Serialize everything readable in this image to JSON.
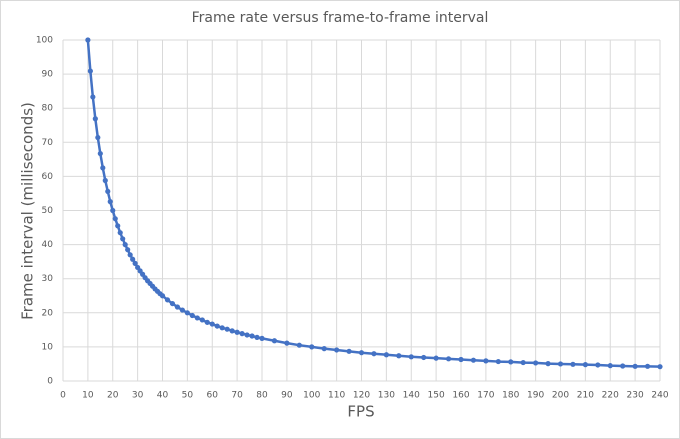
{
  "chart_data": {
    "type": "line",
    "title": "Frame rate versus frame-to-frame interval",
    "x_label": "FPS",
    "y_label": "Frame interval (milliseconds)",
    "x": [
      10,
      11,
      12,
      13,
      14,
      15,
      16,
      17,
      18,
      19,
      20,
      21,
      22,
      23,
      24,
      25,
      26,
      27,
      28,
      29,
      30,
      31,
      32,
      33,
      34,
      35,
      36,
      37,
      38,
      39,
      40,
      42,
      44,
      46,
      48,
      50,
      52,
      54,
      56,
      58,
      60,
      62,
      64,
      66,
      68,
      70,
      72,
      74,
      76,
      78,
      80,
      85,
      90,
      95,
      100,
      105,
      110,
      115,
      120,
      125,
      130,
      135,
      140,
      145,
      150,
      155,
      160,
      165,
      170,
      175,
      180,
      185,
      190,
      195,
      200,
      205,
      210,
      215,
      220,
      225,
      230,
      235,
      240
    ],
    "series": [
      {
        "color": "#4472c4",
        "values": [
          100,
          90.9,
          83.3,
          76.9,
          71.4,
          66.7,
          62.5,
          58.8,
          55.6,
          52.6,
          50,
          47.6,
          45.5,
          43.5,
          41.7,
          40,
          38.5,
          37,
          35.7,
          34.5,
          33.3,
          32.3,
          31.3,
          30.3,
          29.4,
          28.6,
          27.8,
          27,
          26.3,
          25.6,
          25,
          23.8,
          22.7,
          21.7,
          20.8,
          20,
          19.2,
          18.5,
          17.9,
          17.2,
          16.7,
          16.1,
          15.6,
          15.2,
          14.7,
          14.3,
          13.9,
          13.5,
          13.2,
          12.8,
          12.5,
          11.8,
          11.1,
          10.5,
          10,
          9.5,
          9.1,
          8.7,
          8.3,
          8,
          7.7,
          7.4,
          7.1,
          6.9,
          6.7,
          6.5,
          6.3,
          6.1,
          5.9,
          5.7,
          5.6,
          5.4,
          5.3,
          5.1,
          5,
          4.9,
          4.8,
          4.7,
          4.5,
          4.4,
          4.3,
          4.3,
          4.2
        ]
      }
    ],
    "xlim": [
      0,
      240
    ],
    "xticks": [
      0,
      10,
      20,
      30,
      40,
      50,
      60,
      70,
      80,
      90,
      100,
      110,
      120,
      130,
      140,
      150,
      160,
      170,
      180,
      190,
      200,
      210,
      220,
      230,
      240
    ],
    "ylim": [
      0,
      100
    ],
    "yticks": [
      0,
      10,
      20,
      30,
      40,
      50,
      60,
      70,
      80,
      90,
      100
    ],
    "grid": true
  }
}
